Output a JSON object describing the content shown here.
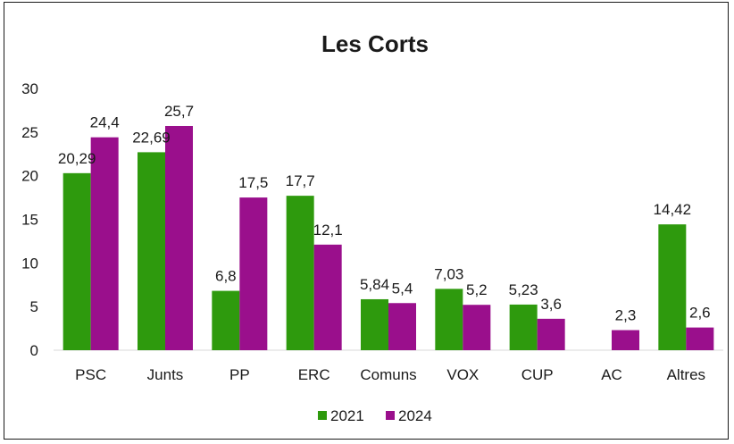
{
  "chart_data": {
    "type": "bar",
    "title": "Les Corts",
    "xlabel": "",
    "ylabel": "",
    "ylim": [
      0,
      30
    ],
    "yticks": [
      0,
      5,
      10,
      15,
      20,
      25,
      30
    ],
    "grid": false,
    "legend_position": "bottom",
    "categories": [
      "PSC",
      "Junts",
      "PP",
      "ERC",
      "Comuns",
      "VOX",
      "CUP",
      "AC",
      "Altres"
    ],
    "series": [
      {
        "name": "2021",
        "color": "#2e9a0d",
        "values": [
          20.29,
          22.69,
          6.8,
          17.7,
          5.84,
          7.03,
          5.23,
          null,
          14.42
        ],
        "labels": [
          "20,29",
          "22,69",
          "6,8",
          "17,7",
          "5,84",
          "7,03",
          "5,23",
          "",
          "14,42"
        ]
      },
      {
        "name": "2024",
        "color": "#9a0f8c",
        "values": [
          24.4,
          25.7,
          17.5,
          12.1,
          5.4,
          5.2,
          3.6,
          2.3,
          2.6
        ],
        "labels": [
          "24,4",
          "25,7",
          "17,5",
          "12,1",
          "5,4",
          "5,2",
          "3,6",
          "2,3",
          "2,6"
        ]
      }
    ]
  }
}
